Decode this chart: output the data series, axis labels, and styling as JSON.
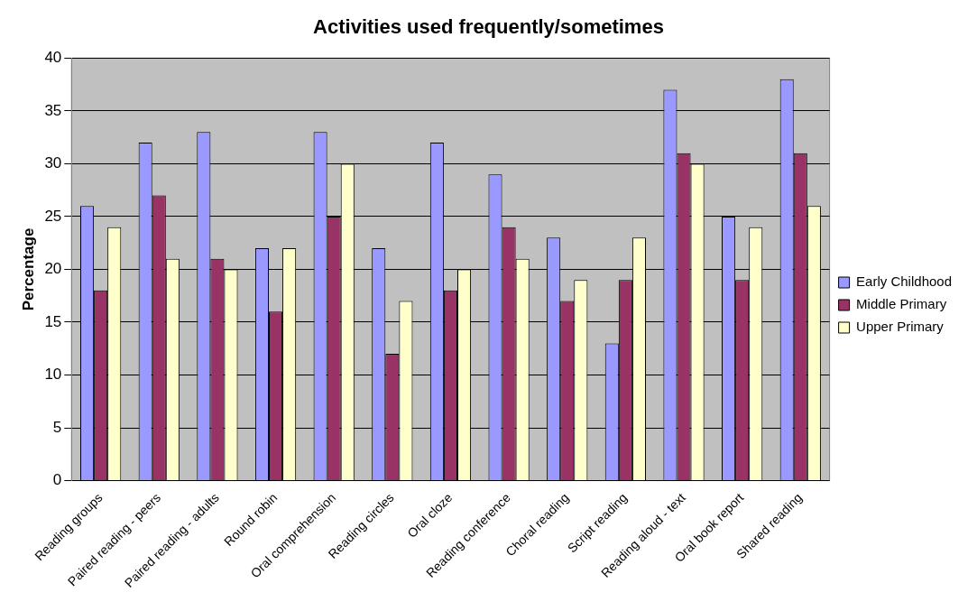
{
  "chart_data": {
    "type": "bar",
    "title": "Activities used frequently/sometimes",
    "ylabel": "Percentage",
    "categories": [
      "Reading groups",
      "Paired reading - peers",
      "Paired reading - adults",
      "Round robin",
      "Oral comprehension",
      "Reading circles",
      "Oral cloze",
      "Reading conference",
      "Choral reading",
      "Script reading",
      "Reading aloud - text",
      "Oral book report",
      "Shared reading"
    ],
    "series": [
      {
        "name": "Early Childhood",
        "color": "#9999ff",
        "values": [
          26,
          32,
          33,
          22,
          33,
          22,
          32,
          29,
          23,
          13,
          37,
          25,
          38
        ]
      },
      {
        "name": "Middle Primary",
        "color": "#993366",
        "values": [
          18,
          27,
          21,
          16,
          25,
          12,
          18,
          24,
          17,
          19,
          31,
          19,
          31
        ]
      },
      {
        "name": "Upper Primary",
        "color": "#ffffcc",
        "values": [
          24,
          21,
          20,
          22,
          30,
          17,
          20,
          21,
          19,
          23,
          30,
          24,
          26
        ]
      }
    ],
    "ylim": [
      0,
      40
    ],
    "yticks": [
      0,
      5,
      10,
      15,
      20,
      25,
      30,
      35,
      40
    ],
    "grid": "y",
    "legend": "right"
  }
}
